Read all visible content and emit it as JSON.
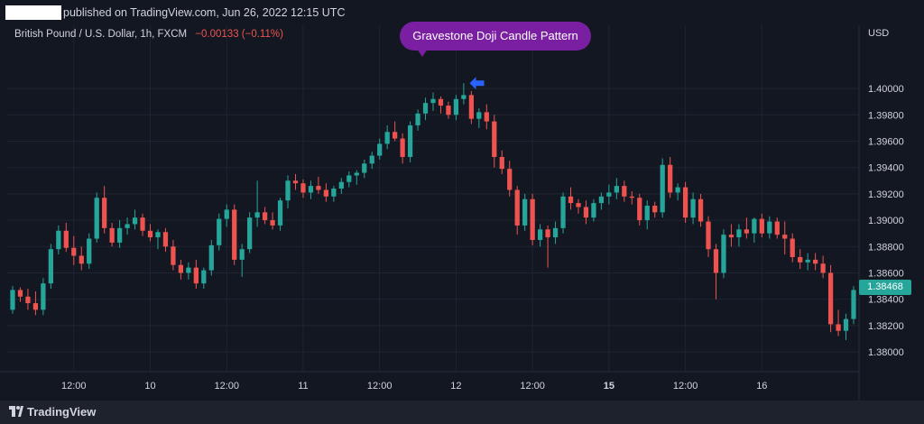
{
  "header": {
    "published_text": "published on TradingView.com, Jun 26, 2022 12:15 UTC"
  },
  "symbol": {
    "name": "British Pound / U.S. Dollar, 1h, FXCM",
    "change": "−0.00133 (−0.11%)"
  },
  "callout": {
    "label": "Gravestone Doji Candle Pattern"
  },
  "price_axis": {
    "currency": "USD",
    "current_price": "1.38468"
  },
  "colors": {
    "background": "#131722",
    "up": "#26a69a",
    "down": "#ef5350",
    "grid": "#1f2430",
    "callout": "#7b1fa2",
    "pointer": "#2962ff"
  },
  "footer": {
    "brand": "TradingView",
    "logo_icon": "tradingview-logo-icon"
  },
  "chart_data": {
    "type": "candlestick",
    "ylim": [
      1.3785,
      1.4048
    ],
    "yticks": [
      "1.40000",
      "1.39800",
      "1.39600",
      "1.39400",
      "1.39200",
      "1.39000",
      "1.38800",
      "1.38600",
      "1.38400",
      "1.38200",
      "1.38000"
    ],
    "xticks": [
      {
        "label": "12:00",
        "index": 8,
        "bold": false
      },
      {
        "label": "10",
        "index": 18,
        "bold": false
      },
      {
        "label": "12:00",
        "index": 28,
        "bold": false
      },
      {
        "label": "11",
        "index": 38,
        "bold": false
      },
      {
        "label": "12:00",
        "index": 48,
        "bold": false
      },
      {
        "label": "12",
        "index": 58,
        "bold": false
      },
      {
        "label": "12:00",
        "index": 68,
        "bold": false
      },
      {
        "label": "15",
        "index": 78,
        "bold": true
      },
      {
        "label": "12:00",
        "index": 88,
        "bold": false
      },
      {
        "label": "16",
        "index": 98,
        "bold": false
      }
    ],
    "pattern_index": 59,
    "candles": [
      [
        1.3832,
        1.385,
        1.3829,
        1.3847
      ],
      [
        1.3847,
        1.3849,
        1.3838,
        1.3842
      ],
      [
        1.3842,
        1.3848,
        1.3832,
        1.3837
      ],
      [
        1.3837,
        1.3846,
        1.3828,
        1.3832
      ],
      [
        1.3832,
        1.3856,
        1.3828,
        1.3852
      ],
      [
        1.3852,
        1.3882,
        1.3848,
        1.3878
      ],
      [
        1.3878,
        1.3896,
        1.3874,
        1.3892
      ],
      [
        1.3892,
        1.3898,
        1.3876,
        1.3879
      ],
      [
        1.3879,
        1.3888,
        1.3866,
        1.3873
      ],
      [
        1.3873,
        1.388,
        1.3862,
        1.3867
      ],
      [
        1.3867,
        1.389,
        1.3863,
        1.3886
      ],
      [
        1.3886,
        1.3921,
        1.3883,
        1.3917
      ],
      [
        1.3917,
        1.3926,
        1.389,
        1.3894
      ],
      [
        1.3894,
        1.3898,
        1.388,
        1.3883
      ],
      [
        1.3883,
        1.39,
        1.3879,
        1.3894
      ],
      [
        1.3894,
        1.3902,
        1.3889,
        1.3897
      ],
      [
        1.3897,
        1.3908,
        1.3893,
        1.3902
      ],
      [
        1.3902,
        1.3905,
        1.3888,
        1.3892
      ],
      [
        1.3892,
        1.3897,
        1.3884,
        1.3887
      ],
      [
        1.3887,
        1.3893,
        1.3878,
        1.3891
      ],
      [
        1.3891,
        1.3894,
        1.3876,
        1.388
      ],
      [
        1.388,
        1.3885,
        1.3862,
        1.3866
      ],
      [
        1.3866,
        1.387,
        1.3855,
        1.386
      ],
      [
        1.386,
        1.3868,
        1.3855,
        1.3864
      ],
      [
        1.3864,
        1.387,
        1.3848,
        1.3852
      ],
      [
        1.3852,
        1.3864,
        1.3848,
        1.3862
      ],
      [
        1.3862,
        1.3885,
        1.3858,
        1.3881
      ],
      [
        1.3881,
        1.3905,
        1.3877,
        1.3901
      ],
      [
        1.3901,
        1.3912,
        1.3895,
        1.3908
      ],
      [
        1.3908,
        1.3912,
        1.3866,
        1.387
      ],
      [
        1.387,
        1.3882,
        1.3857,
        1.3878
      ],
      [
        1.3878,
        1.3906,
        1.3875,
        1.3902
      ],
      [
        1.3902,
        1.393,
        1.3895,
        1.3906
      ],
      [
        1.3906,
        1.391,
        1.3897,
        1.39
      ],
      [
        1.39,
        1.3906,
        1.3893,
        1.3896
      ],
      [
        1.3896,
        1.3917,
        1.3892,
        1.3915
      ],
      [
        1.3915,
        1.3934,
        1.3909,
        1.393
      ],
      [
        1.393,
        1.3935,
        1.3923,
        1.3928
      ],
      [
        1.3928,
        1.3931,
        1.3917,
        1.3921
      ],
      [
        1.3921,
        1.393,
        1.3916,
        1.3926
      ],
      [
        1.3926,
        1.3933,
        1.392,
        1.3923
      ],
      [
        1.3923,
        1.3928,
        1.3914,
        1.3918
      ],
      [
        1.3918,
        1.3926,
        1.3914,
        1.3924
      ],
      [
        1.3924,
        1.3932,
        1.392,
        1.3929
      ],
      [
        1.3929,
        1.3937,
        1.3925,
        1.3934
      ],
      [
        1.3934,
        1.3938,
        1.3927,
        1.3936
      ],
      [
        1.3936,
        1.3946,
        1.3932,
        1.3943
      ],
      [
        1.3943,
        1.3952,
        1.3939,
        1.3949
      ],
      [
        1.3949,
        1.3962,
        1.3946,
        1.3958
      ],
      [
        1.3958,
        1.3972,
        1.3954,
        1.3967
      ],
      [
        1.3967,
        1.3975,
        1.396,
        1.3962
      ],
      [
        1.3962,
        1.3966,
        1.3943,
        1.3948
      ],
      [
        1.3948,
        1.3975,
        1.3944,
        1.3972
      ],
      [
        1.3972,
        1.3984,
        1.3968,
        1.3981
      ],
      [
        1.3981,
        1.3993,
        1.3976,
        1.3989
      ],
      [
        1.3989,
        1.3997,
        1.3983,
        1.3992
      ],
      [
        1.3992,
        1.3994,
        1.3981,
        1.3987
      ],
      [
        1.3987,
        1.399,
        1.3977,
        1.398
      ],
      [
        1.398,
        1.3995,
        1.3976,
        1.3992
      ],
      [
        1.3992,
        1.4004,
        1.3988,
        1.3995
      ],
      [
        1.3995,
        1.3998,
        1.3973,
        1.3977
      ],
      [
        1.3977,
        1.3985,
        1.397,
        1.3982
      ],
      [
        1.3982,
        1.3988,
        1.3969,
        1.3975
      ],
      [
        1.3975,
        1.398,
        1.394,
        1.3948
      ],
      [
        1.3948,
        1.3953,
        1.3935,
        1.3939
      ],
      [
        1.3939,
        1.3945,
        1.3918,
        1.3923
      ],
      [
        1.3923,
        1.3926,
        1.3889,
        1.3896
      ],
      [
        1.3896,
        1.392,
        1.3892,
        1.3916
      ],
      [
        1.3916,
        1.392,
        1.3881,
        1.3885
      ],
      [
        1.3885,
        1.3897,
        1.388,
        1.3893
      ],
      [
        1.3893,
        1.3896,
        1.3864,
        1.3887
      ],
      [
        1.3887,
        1.3899,
        1.3882,
        1.3894
      ],
      [
        1.3894,
        1.3921,
        1.389,
        1.3918
      ],
      [
        1.3918,
        1.3925,
        1.3908,
        1.3913
      ],
      [
        1.3913,
        1.3916,
        1.3905,
        1.391
      ],
      [
        1.391,
        1.3915,
        1.3897,
        1.3902
      ],
      [
        1.3902,
        1.3916,
        1.3899,
        1.3913
      ],
      [
        1.3913,
        1.3921,
        1.3908,
        1.3918
      ],
      [
        1.3918,
        1.3927,
        1.3912,
        1.3921
      ],
      [
        1.3921,
        1.3932,
        1.3916,
        1.3926
      ],
      [
        1.3926,
        1.393,
        1.3914,
        1.3918
      ],
      [
        1.3918,
        1.3922,
        1.3912,
        1.3917
      ],
      [
        1.3917,
        1.392,
        1.3896,
        1.39
      ],
      [
        1.39,
        1.3915,
        1.3893,
        1.3911
      ],
      [
        1.3911,
        1.3914,
        1.3902,
        1.3906
      ],
      [
        1.3906,
        1.3947,
        1.3902,
        1.3942
      ],
      [
        1.3942,
        1.3948,
        1.3917,
        1.3921
      ],
      [
        1.3921,
        1.3928,
        1.3915,
        1.3925
      ],
      [
        1.3925,
        1.3929,
        1.3898,
        1.3902
      ],
      [
        1.3902,
        1.3921,
        1.3897,
        1.3916
      ],
      [
        1.3916,
        1.392,
        1.3895,
        1.3899
      ],
      [
        1.3899,
        1.3903,
        1.3872,
        1.3878
      ],
      [
        1.3878,
        1.3882,
        1.384,
        1.386
      ],
      [
        1.386,
        1.3893,
        1.3856,
        1.3889
      ],
      [
        1.3889,
        1.3897,
        1.388,
        1.3887
      ],
      [
        1.3887,
        1.3897,
        1.388,
        1.3893
      ],
      [
        1.3893,
        1.3902,
        1.3886,
        1.389
      ],
      [
        1.389,
        1.3902,
        1.3883,
        1.3901
      ],
      [
        1.3901,
        1.3905,
        1.3887,
        1.389
      ],
      [
        1.389,
        1.3903,
        1.3886,
        1.3899
      ],
      [
        1.3899,
        1.3902,
        1.3886,
        1.3889
      ],
      [
        1.3889,
        1.3899,
        1.3874,
        1.3886
      ],
      [
        1.3886,
        1.389,
        1.3868,
        1.3872
      ],
      [
        1.3872,
        1.3878,
        1.3863,
        1.3868
      ],
      [
        1.3868,
        1.3875,
        1.3862,
        1.387
      ],
      [
        1.387,
        1.3875,
        1.3862,
        1.3867
      ],
      [
        1.3867,
        1.3873,
        1.3856,
        1.386
      ],
      [
        1.386,
        1.3866,
        1.3815,
        1.3821
      ],
      [
        1.3821,
        1.3832,
        1.3812,
        1.3816
      ],
      [
        1.3816,
        1.3829,
        1.3809,
        1.3825
      ],
      [
        1.3825,
        1.385,
        1.3821,
        1.3847
      ]
    ]
  }
}
